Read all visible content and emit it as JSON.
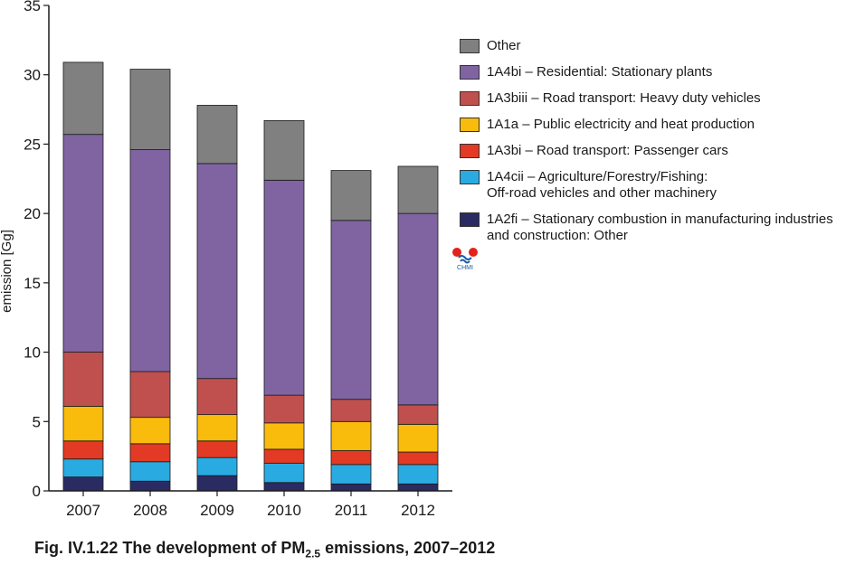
{
  "chart_data": {
    "type": "bar",
    "stacked": true,
    "categories": [
      "2007",
      "2008",
      "2009",
      "2010",
      "2011",
      "2012"
    ],
    "ylabel": "emission [Gg]",
    "ylim": [
      0,
      35
    ],
    "yticks": [
      0,
      5,
      10,
      15,
      20,
      25,
      30,
      35
    ],
    "series": [
      {
        "name": "1A2fi – Stationary combustion in manufacturing industries",
        "name_line2": "and construction: Other",
        "color": "#2b2b63",
        "values": [
          1.0,
          0.7,
          1.1,
          0.6,
          0.5,
          0.5
        ]
      },
      {
        "name": "1A4cii – Agriculture/Forestry/Fishing:",
        "name_line2": "Off-road vehicles and other machinery",
        "color": "#29abe2",
        "values": [
          1.3,
          1.4,
          1.3,
          1.4,
          1.4,
          1.4
        ]
      },
      {
        "name": "1A3bi – Road transport: Passenger cars",
        "color": "#e23a24",
        "values": [
          1.3,
          1.3,
          1.2,
          1.0,
          1.0,
          0.9
        ]
      },
      {
        "name": "1A1a – Public electricity and heat production",
        "color": "#f9bb0c",
        "values": [
          2.5,
          1.9,
          1.9,
          1.9,
          2.1,
          2.0
        ]
      },
      {
        "name": "1A3biii – Road transport: Heavy duty vehicles",
        "color": "#c0504d",
        "values": [
          3.9,
          3.3,
          2.6,
          2.0,
          1.6,
          1.4
        ]
      },
      {
        "name": " 1A4bi  – Residential: Stationary plants",
        "color": "#8064a2",
        "values": [
          15.7,
          16.0,
          15.5,
          15.5,
          12.9,
          13.8
        ]
      },
      {
        "name": "Other",
        "color": "#808080",
        "values": [
          5.2,
          5.8,
          4.2,
          4.3,
          3.6,
          3.4
        ]
      }
    ],
    "legend_order": [
      6,
      5,
      4,
      3,
      2,
      1,
      0
    ],
    "grid": false,
    "legend_position": "right"
  },
  "logo": {
    "text": "CHMI"
  },
  "caption": {
    "prefix": "Fig. IV.1.22  The development of PM",
    "sub": "2.5",
    "suffix": " emissions, 2007–2012"
  }
}
